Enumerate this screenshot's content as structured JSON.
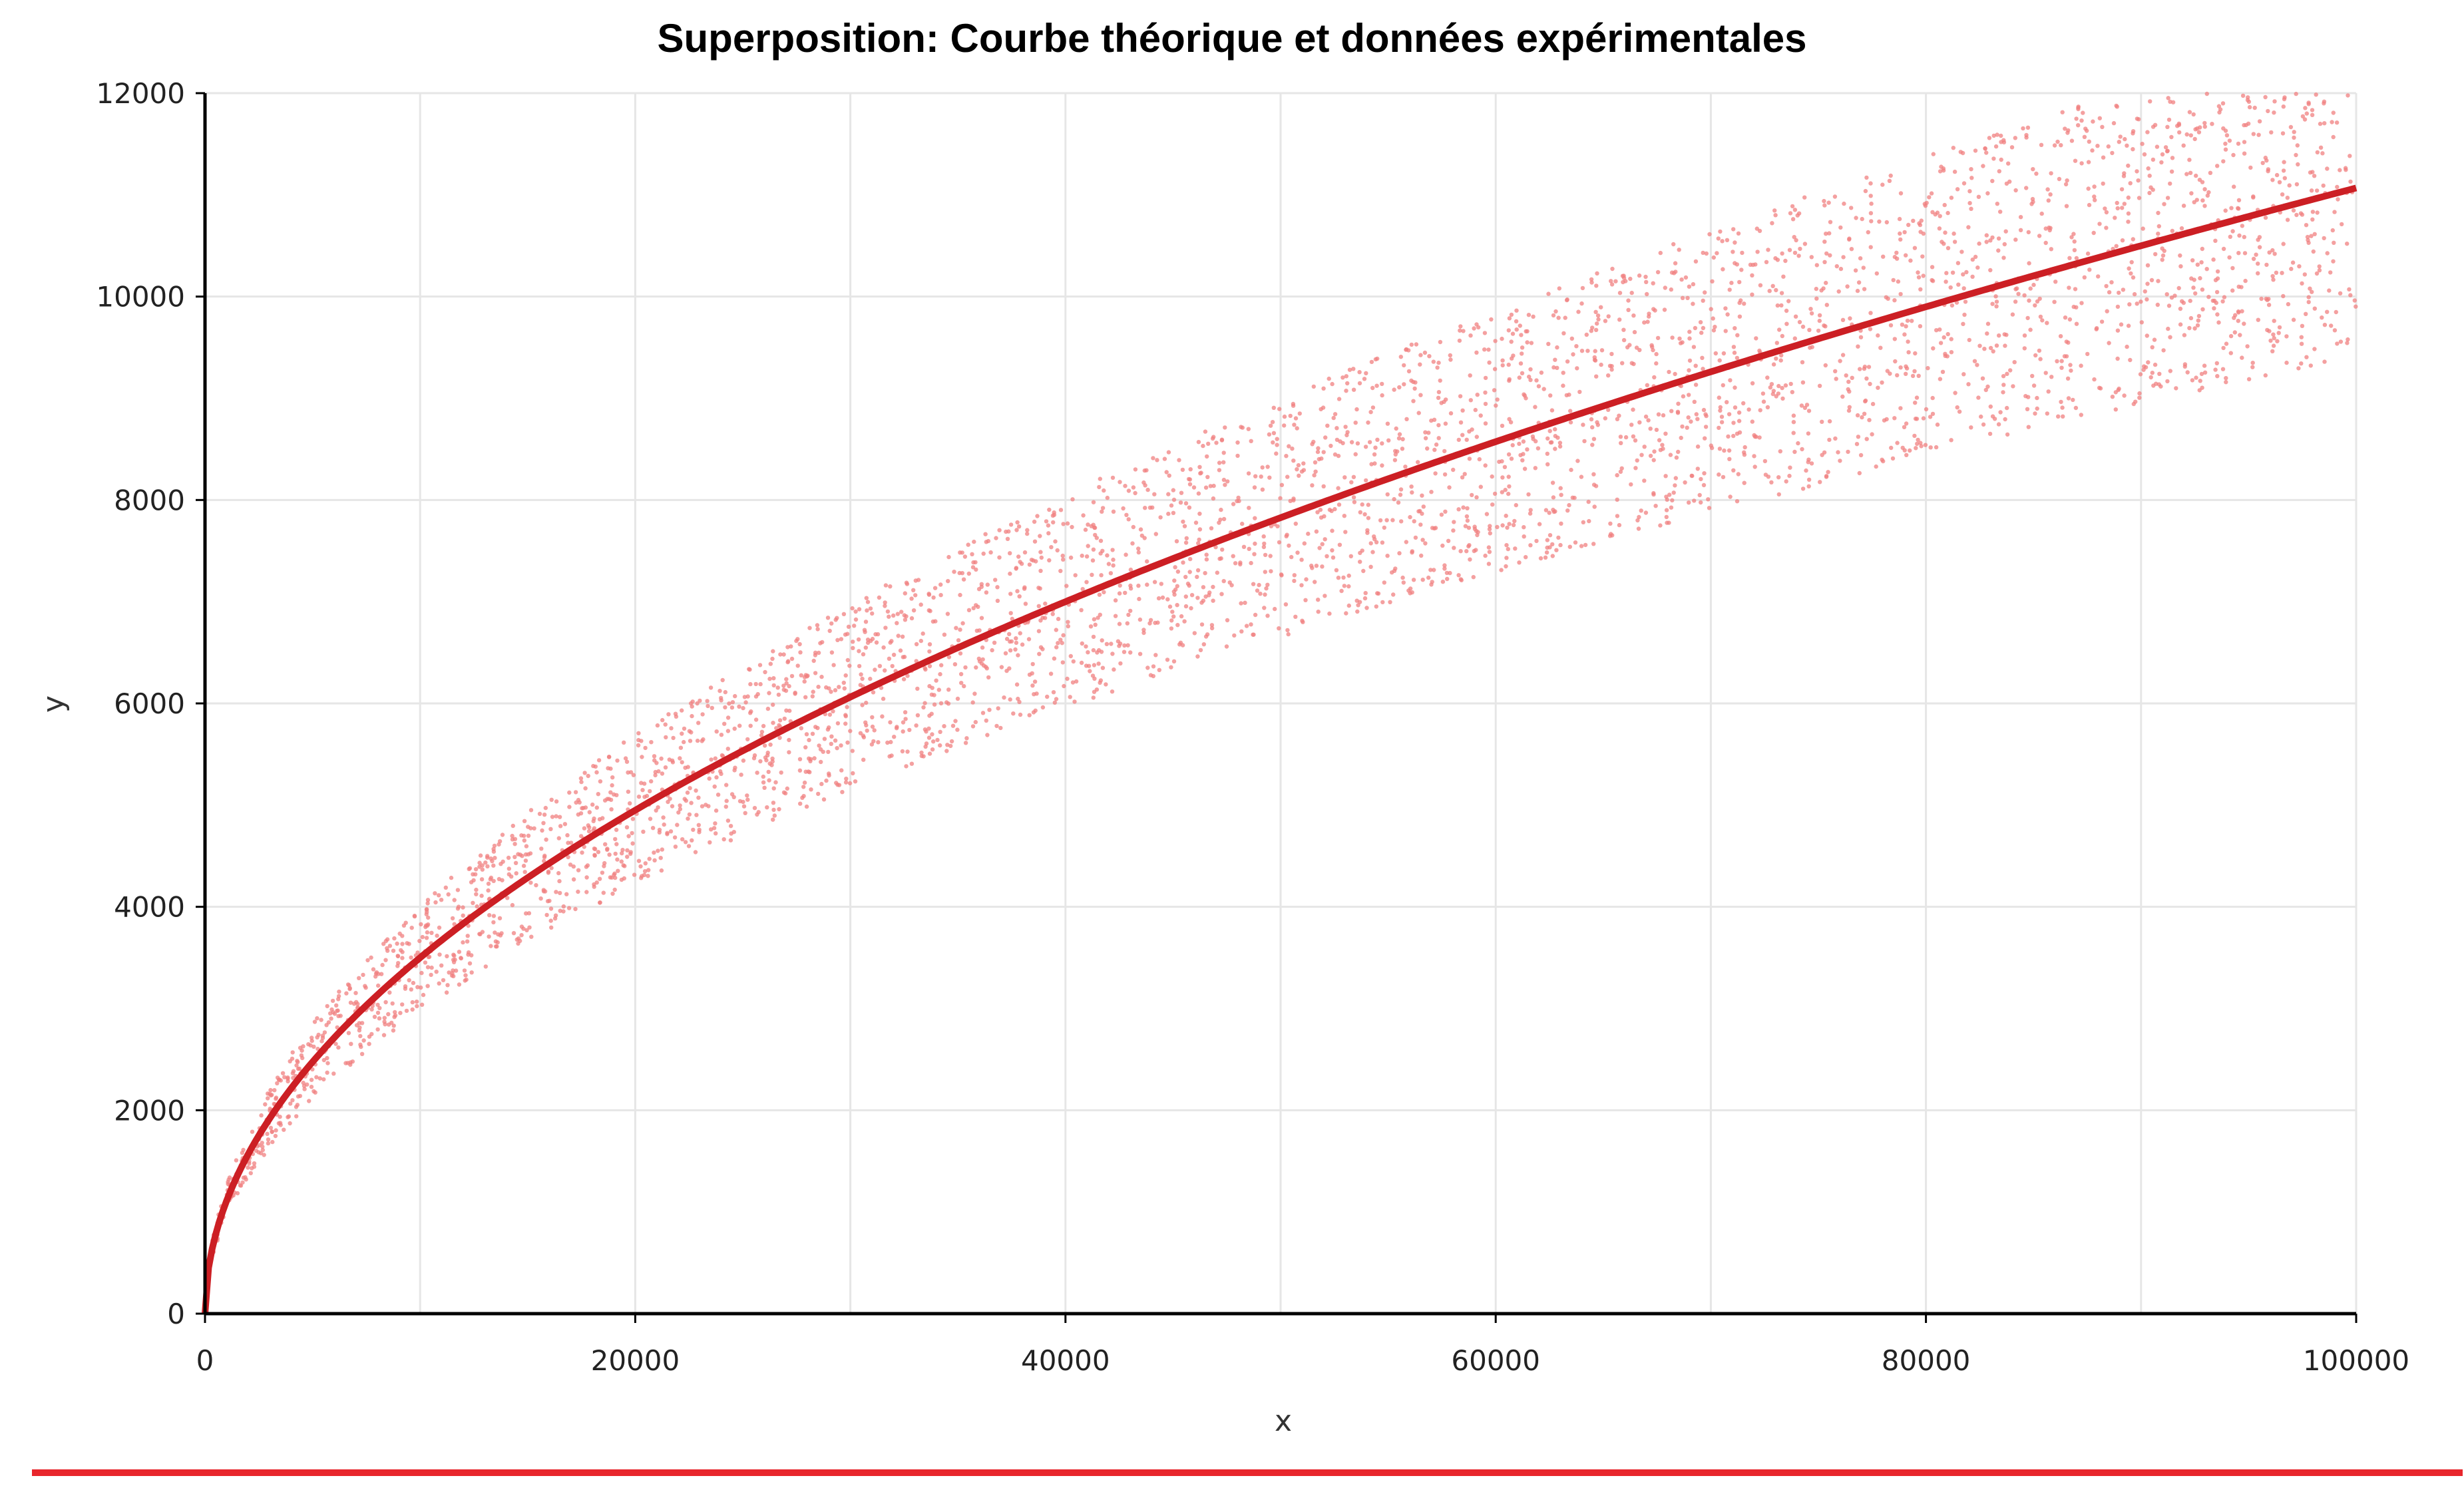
{
  "chart_data": {
    "type": "scatter",
    "title": "Superposition: Courbe théorique et données expérimentales",
    "xlabel": "x",
    "ylabel": "y",
    "xlim": [
      0,
      100000
    ],
    "ylim": [
      0,
      12000
    ],
    "x_ticks": [
      "0",
      "20000",
      "40000",
      "60000",
      "80000",
      "100000"
    ],
    "y_ticks": [
      "0",
      "2000",
      "4000",
      "6000",
      "8000",
      "10000",
      "12000"
    ],
    "grid": true,
    "legend": "none",
    "series": [
      {
        "kind": "line",
        "model": "y = 35 * sqrt(x)",
        "x": [
          0,
          1000,
          5000,
          10000,
          20000,
          30000,
          40000,
          50000,
          60000,
          70000,
          80000,
          90000,
          100000
        ],
        "values": [
          0,
          1107,
          2475,
          3500,
          4950,
          6062,
          7000,
          7826,
          8573,
          9260,
          9899,
          10500,
          11068
        ],
        "color": "#cc1f24"
      },
      {
        "kind": "scatter",
        "count": 4000,
        "x_range": [
          0,
          100000
        ],
        "spread": "approximately ±15% around the curve",
        "color": "#f08080"
      }
    ],
    "accent_rule_color": "#e8262c"
  }
}
